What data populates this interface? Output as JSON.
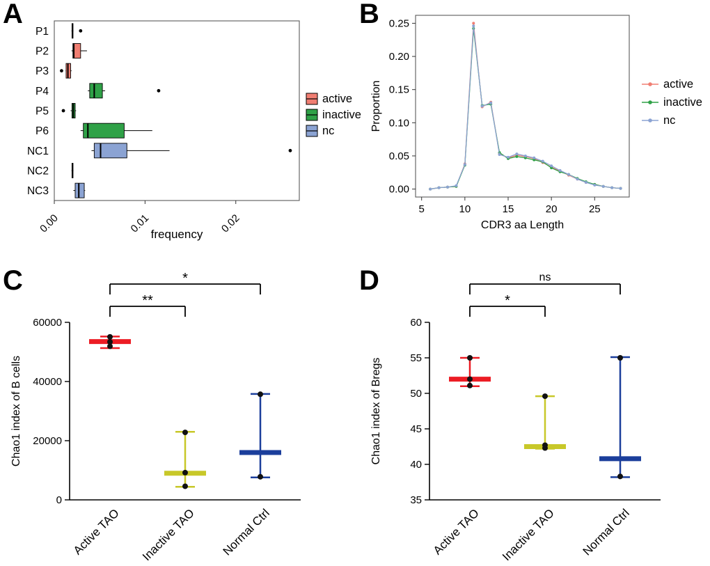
{
  "figure": {
    "background": "#ffffff",
    "panels": [
      {
        "label": "A"
      },
      {
        "label": "B"
      },
      {
        "label": "C"
      },
      {
        "label": "D"
      }
    ]
  },
  "chart_data": [
    {
      "id": "A",
      "type": "boxplot",
      "orientation": "horizontal",
      "xlabel": "frequency",
      "xlim": [
        0,
        0.027
      ],
      "xticks": [
        0,
        0.01,
        0.02
      ],
      "xtick_labels": [
        "0.00",
        "0.01",
        "0.02"
      ],
      "categories": [
        "P1",
        "P2",
        "P3",
        "P4",
        "P5",
        "P6",
        "NC1",
        "NC2",
        "NC3"
      ],
      "colors": {
        "active": "#F07E72",
        "inactive": "#2FA147",
        "nc": "#8BA3D3"
      },
      "legend": [
        {
          "label": "active",
          "color": "#F07E72"
        },
        {
          "label": "inactive",
          "color": "#2FA147"
        },
        {
          "label": "nc",
          "color": "#8BA3D3"
        }
      ],
      "boxes": [
        {
          "category": "P1",
          "group": "active",
          "min": 0.0019,
          "q1": 0.00195,
          "median": 0.002,
          "q3": 0.00205,
          "max": 0.0021,
          "outliers": [
            0.0029
          ]
        },
        {
          "category": "P2",
          "group": "active",
          "min": 0.0019,
          "q1": 0.00205,
          "median": 0.00215,
          "q3": 0.0029,
          "max": 0.0036,
          "outliers": []
        },
        {
          "category": "P3",
          "group": "active",
          "min": 0.00125,
          "q1": 0.0013,
          "median": 0.0015,
          "q3": 0.0018,
          "max": 0.0019,
          "outliers": [
            0.0008
          ]
        },
        {
          "category": "P4",
          "group": "inactive",
          "min": 0.0037,
          "q1": 0.0039,
          "median": 0.0044,
          "q3": 0.0053,
          "max": 0.0056,
          "outliers": [
            0.0115
          ]
        },
        {
          "category": "P5",
          "group": "inactive",
          "min": 0.0018,
          "q1": 0.00195,
          "median": 0.0021,
          "q3": 0.0023,
          "max": 0.0024,
          "outliers": [
            0.001
          ]
        },
        {
          "category": "P6",
          "group": "inactive",
          "min": 0.0029,
          "q1": 0.0032,
          "median": 0.0037,
          "q3": 0.0077,
          "max": 0.0108,
          "outliers": []
        },
        {
          "category": "NC1",
          "group": "nc",
          "min": 0.0041,
          "q1": 0.0044,
          "median": 0.0051,
          "q3": 0.008,
          "max": 0.0127,
          "outliers": [
            0.026
          ]
        },
        {
          "category": "NC2",
          "group": "nc",
          "min": 0.0019,
          "q1": 0.00195,
          "median": 0.002,
          "q3": 0.00205,
          "max": 0.0021,
          "outliers": []
        },
        {
          "category": "NC3",
          "group": "nc",
          "min": 0.0021,
          "q1": 0.0023,
          "median": 0.0027,
          "q3": 0.0033,
          "max": 0.0034,
          "outliers": []
        }
      ]
    },
    {
      "id": "B",
      "type": "line",
      "xlabel": "CDR3 aa Length",
      "ylabel": "Proportion",
      "xlim": [
        4.3,
        29
      ],
      "ylim": [
        -0.012,
        0.262
      ],
      "xticks": [
        5,
        10,
        15,
        20,
        25
      ],
      "yticks": [
        0,
        0.05,
        0.1,
        0.15,
        0.2,
        0.25
      ],
      "ytick_labels": [
        "0.00",
        "0.05",
        "0.10",
        "0.15",
        "0.20",
        "0.25"
      ],
      "x": [
        6,
        7,
        8,
        9,
        10,
        11,
        12,
        13,
        14,
        15,
        16,
        17,
        18,
        19,
        20,
        21,
        22,
        23,
        24,
        25,
        26,
        27,
        28
      ],
      "series": [
        {
          "name": "active",
          "color": "#F07E72",
          "values": [
            0.0,
            0.002,
            0.003,
            0.004,
            0.038,
            0.25,
            0.124,
            0.131,
            0.053,
            0.047,
            0.051,
            0.049,
            0.046,
            0.04,
            0.033,
            0.027,
            0.021,
            0.015,
            0.01,
            0.007,
            0.004,
            0.002,
            0.001
          ]
        },
        {
          "name": "inactive",
          "color": "#2FA147",
          "values": [
            0.0,
            0.002,
            0.003,
            0.004,
            0.036,
            0.242,
            0.126,
            0.128,
            0.055,
            0.046,
            0.049,
            0.047,
            0.044,
            0.041,
            0.032,
            0.026,
            0.022,
            0.016,
            0.011,
            0.007,
            0.004,
            0.002,
            0.001
          ]
        },
        {
          "name": "nc",
          "color": "#8BA3D3",
          "values": [
            0.0,
            0.002,
            0.003,
            0.005,
            0.037,
            0.246,
            0.125,
            0.13,
            0.052,
            0.048,
            0.053,
            0.05,
            0.047,
            0.042,
            0.035,
            0.028,
            0.022,
            0.015,
            0.01,
            0.006,
            0.004,
            0.002,
            0.001
          ]
        }
      ]
    },
    {
      "id": "C",
      "type": "minmax",
      "ylabel": "Chao1  index of B cells",
      "ylim": [
        0,
        60000
      ],
      "yticks": [
        0,
        20000,
        40000,
        60000
      ],
      "ytick_labels": [
        "0",
        "20000",
        "40000",
        "60000"
      ],
      "categories": [
        "Active TAO",
        "Inactive TAO",
        "Normal Ctrl"
      ],
      "groups": [
        {
          "label": "Active TAO",
          "color": "#EC1C24",
          "min": 51300,
          "median": 53500,
          "max": 55200,
          "points": [
            51900,
            53400,
            55100
          ]
        },
        {
          "label": "Inactive TAO",
          "color": "#C8C829",
          "min": 4400,
          "median": 9000,
          "max": 23000,
          "points": [
            4600,
            9200,
            22800
          ]
        },
        {
          "label": "Normal Ctrl",
          "color": "#1B3E9B",
          "min": 7600,
          "median": 16000,
          "max": 35800,
          "points": [
            7800,
            35700
          ]
        }
      ],
      "significance": [
        {
          "from": 0,
          "to": 1,
          "label": "**"
        },
        {
          "from": 0,
          "to": 2,
          "label": "*"
        }
      ]
    },
    {
      "id": "D",
      "type": "minmax",
      "ylabel": "Chao1 index of Bregs",
      "ylim": [
        35,
        60
      ],
      "yticks": [
        35,
        40,
        45,
        50,
        55,
        60
      ],
      "ytick_labels": [
        "35",
        "40",
        "45",
        "50",
        "55",
        "60"
      ],
      "categories": [
        "Active TAO",
        "Inactive TAO",
        "Normal Ctrl"
      ],
      "groups": [
        {
          "label": "Active TAO",
          "color": "#EC1C24",
          "min": 51.0,
          "median": 52.0,
          "max": 55.0,
          "points": [
            51.1,
            52.0,
            55.0
          ]
        },
        {
          "label": "Inactive TAO",
          "color": "#C8C829",
          "min": 42.2,
          "median": 42.5,
          "max": 49.6,
          "points": [
            42.3,
            42.7,
            49.6
          ]
        },
        {
          "label": "Normal Ctrl",
          "color": "#1B3E9B",
          "min": 38.2,
          "median": 40.8,
          "max": 55.1,
          "points": [
            38.3,
            55.0
          ]
        }
      ],
      "significance": [
        {
          "from": 0,
          "to": 1,
          "label": "*"
        },
        {
          "from": 0,
          "to": 2,
          "label": "ns"
        }
      ]
    }
  ]
}
